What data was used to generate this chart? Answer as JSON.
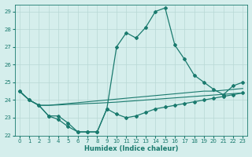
{
  "xlabel": "Humidex (Indice chaleur)",
  "bg_color": "#d5eeec",
  "grid_color": "#b8d8d5",
  "line_color": "#1a7a6e",
  "xlim": [
    -0.5,
    23.5
  ],
  "ylim": [
    22,
    29.4
  ],
  "xticks": [
    0,
    1,
    2,
    3,
    4,
    5,
    6,
    7,
    8,
    9,
    10,
    11,
    12,
    13,
    14,
    15,
    16,
    17,
    18,
    19,
    20,
    21,
    22,
    23
  ],
  "yticks": [
    22,
    23,
    24,
    25,
    26,
    27,
    28,
    29
  ],
  "series": {
    "peaked": [
      24.5,
      24.0,
      23.7,
      23.1,
      23.1,
      22.7,
      22.2,
      22.2,
      22.2,
      23.5,
      27.0,
      27.8,
      27.5,
      28.1,
      29.0,
      29.2,
      27.1,
      26.3,
      25.4,
      25.0,
      24.6,
      24.3,
      24.8,
      25.0
    ],
    "flat1": [
      24.5,
      24.0,
      23.7,
      23.7,
      23.75,
      23.8,
      23.85,
      23.9,
      23.95,
      24.0,
      24.05,
      24.1,
      24.15,
      24.2,
      24.25,
      24.3,
      24.35,
      24.4,
      24.45,
      24.5,
      24.5,
      24.55,
      24.6,
      24.65
    ],
    "flat2": [
      24.5,
      24.0,
      23.7,
      23.7,
      23.72,
      23.75,
      23.77,
      23.8,
      23.82,
      23.85,
      23.88,
      23.92,
      23.96,
      24.0,
      24.04,
      24.08,
      24.12,
      24.16,
      24.2,
      24.24,
      24.28,
      24.32,
      24.36,
      24.4
    ],
    "lower": [
      24.5,
      24.0,
      23.7,
      23.1,
      22.9,
      22.5,
      22.2,
      22.2,
      22.2,
      23.5,
      23.2,
      23.0,
      23.1,
      23.3,
      23.5,
      23.6,
      23.7,
      23.8,
      23.9,
      24.0,
      24.1,
      24.2,
      24.3,
      24.4
    ]
  }
}
